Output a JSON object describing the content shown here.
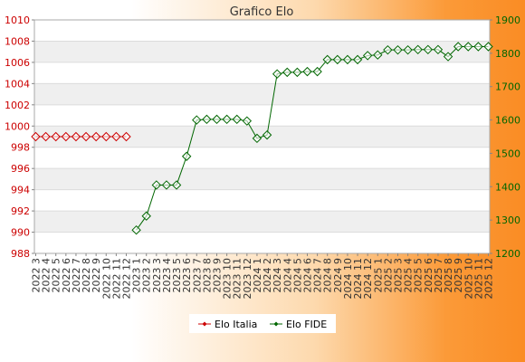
{
  "chart_data": {
    "type": "line",
    "title": "Grafico Elo",
    "categories": [
      "2022 3",
      "2022 4",
      "2022 5",
      "2022 6",
      "2022 7",
      "2022 8",
      "2022 9",
      "2022 10",
      "2022 11",
      "2022 12",
      "2023 1",
      "2023 2",
      "2023 3",
      "2023 4",
      "2023 5",
      "2023 6",
      "2023 7",
      "2023 8",
      "2023 9",
      "2023 10",
      "2023 11",
      "2023 12",
      "2024 1",
      "2024 2",
      "2024 3",
      "2024 4",
      "2024 5",
      "2024 6",
      "2024 7",
      "2024 8",
      "2024 9",
      "2024 10",
      "2024 11",
      "2024 12",
      "2025 1",
      "2025 2",
      "2025 3",
      "2025 4",
      "2025 5",
      "2025 6",
      "2025 7",
      "2025 8",
      "2025 9",
      "2025 10",
      "2025 11",
      "2025 12"
    ],
    "left_axis": {
      "ticks": [
        988,
        990,
        992,
        994,
        996,
        998,
        1000,
        1002,
        1004,
        1006,
        1008,
        1010
      ],
      "ylim": [
        988,
        1010
      ]
    },
    "right_axis": {
      "ticks": [
        1200,
        1300,
        1400,
        1500,
        1600,
        1700,
        1800,
        1900
      ],
      "ylim": [
        1200,
        1900
      ]
    },
    "grid": true,
    "legend_position": "bottom-center",
    "series": [
      {
        "name": "Elo Italia",
        "axis": "left",
        "color": "#cc0000",
        "values": [
          999,
          999,
          999,
          999,
          999,
          999,
          999,
          999,
          999,
          999,
          null,
          null,
          null,
          null,
          null,
          null,
          null,
          null,
          null,
          null,
          null,
          null,
          null,
          null,
          null,
          null,
          null,
          null,
          null,
          null,
          null,
          null,
          null,
          null,
          null,
          null,
          null,
          null,
          null,
          null,
          null,
          null,
          null,
          null,
          null,
          null
        ]
      },
      {
        "name": "Elo FIDE",
        "axis": "right",
        "color": "#006600",
        "values": [
          null,
          null,
          null,
          null,
          null,
          null,
          null,
          null,
          null,
          null,
          1270,
          1312,
          1405,
          1405,
          1405,
          1491,
          1600,
          1602,
          1602,
          1602,
          1602,
          1597,
          1545,
          1555,
          1738,
          1743,
          1743,
          1745,
          1745,
          1781,
          1781,
          1781,
          1781,
          1793,
          1795,
          1810,
          1810,
          1810,
          1811,
          1811,
          1811,
          1790,
          1820,
          1820,
          1820,
          1820
        ]
      }
    ]
  }
}
